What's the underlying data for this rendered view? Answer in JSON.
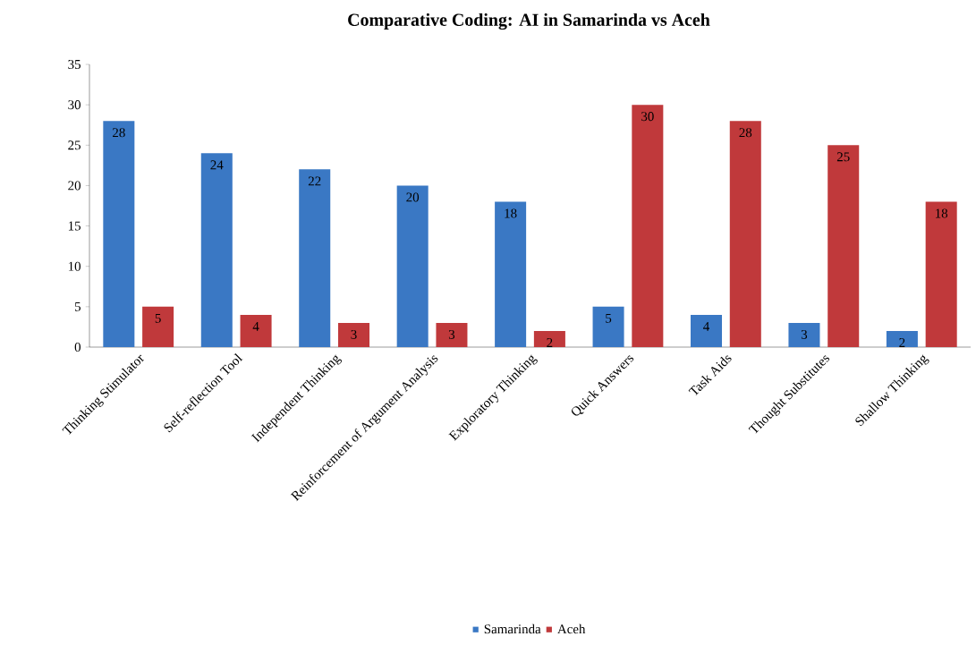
{
  "chart_data": {
    "type": "bar",
    "title": "Comparative Coding: AI in Samarinda vs Aceh",
    "categories": [
      "Thinking Stimulator",
      "Self-reflection Tool",
      "Independent Thinking",
      "Reinforcement of Argument Analysis",
      "Exploratory Thinking",
      "Quick Answers",
      "Task Aids",
      "Thought Substitutes",
      "Shallow Thinking"
    ],
    "series": [
      {
        "name": "Samarinda",
        "color": "#3a78c4",
        "values": [
          28,
          24,
          22,
          20,
          18,
          5,
          4,
          3,
          2
        ]
      },
      {
        "name": "Aceh",
        "color": "#c0393b",
        "values": [
          5,
          4,
          3,
          3,
          2,
          30,
          28,
          25,
          18
        ]
      }
    ],
    "ylim": [
      0,
      35
    ],
    "yticks": [
      0,
      5,
      10,
      15,
      20,
      25,
      30,
      35
    ],
    "grid": false,
    "legend": "bottom",
    "data_labels": true
  }
}
